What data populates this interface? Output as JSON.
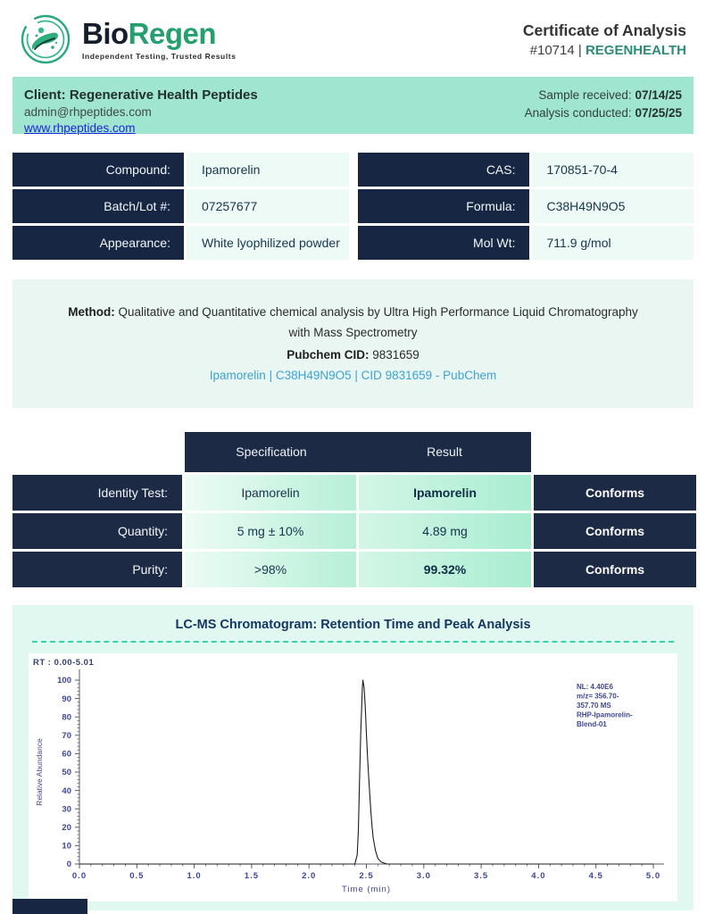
{
  "header": {
    "logo_bio": "Bio",
    "logo_regen": "Regen",
    "tagline": "Independent Testing, Trusted Results",
    "title": "Certificate of Analysis",
    "cert_number": "#10714",
    "separator": " | ",
    "brand": "REGENHEALTH"
  },
  "client_bar": {
    "client_line": "Client: Regenerative Health Peptides",
    "email": "admin@rhpeptides.com",
    "website": "www.rhpeptides.com",
    "sample_received_label": "Sample received: ",
    "sample_received_date": "07/14/25",
    "analysis_conducted_label": "Analysis conducted: ",
    "analysis_conducted_date": "07/25/25"
  },
  "compound_table": {
    "left_rows": [
      {
        "label": "Compound:",
        "value": "Ipamorelin"
      },
      {
        "label": "Batch/Lot #:",
        "value": "07257677"
      },
      {
        "label": "Appearance:",
        "value": "White lyophilized powder"
      }
    ],
    "right_rows": [
      {
        "label": "CAS:",
        "value": "170851-70-4"
      },
      {
        "label": "Formula:",
        "value": "C38H49N9O5"
      },
      {
        "label": "Mol Wt:",
        "value": "711.9 g/mol"
      }
    ]
  },
  "method": {
    "label": "Method: ",
    "text": "Qualitative and Quantitative chemical analysis by Ultra High Performance Liquid Chromatography with Mass Spectrometry",
    "pubchem_label": "Pubchem CID: ",
    "pubchem_cid": "9831659",
    "link": "Ipamorelin | C38H49N9O5 | CID 9831659 - PubChem"
  },
  "spec_table": {
    "header_specification": "Specification",
    "header_result": "Result",
    "rows": [
      {
        "label": "Identity Test:",
        "specification": "Ipamorelin",
        "result": "Ipamorelin",
        "result_bold": true,
        "status": "Conforms"
      },
      {
        "label": "Quantity:",
        "specification": "5 mg ± 10%",
        "result": "4.89 mg",
        "result_bold": false,
        "status": "Conforms"
      },
      {
        "label": "Purity:",
        "specification": ">98%",
        "result": "99.32%",
        "result_bold": true,
        "status": "Conforms"
      }
    ]
  },
  "chromatogram": {
    "section_title": "LC-MS Chromatogram: Retention Time and Peak Analysis",
    "rt_range_label": "RT : 0.00-5.01",
    "annotation_lines": [
      "NL: 4.40E6",
      "m/z= 356.70-",
      "357.70 MS",
      "RHP-Ipamorelin-",
      "Blend-01"
    ]
  },
  "chart_data": {
    "type": "line",
    "title": "LC-MS Chromatogram: Retention Time and Peak Analysis",
    "xlabel": "Time (min)",
    "ylabel": "Relative Abundance",
    "xlim": [
      0,
      5.0
    ],
    "ylim": [
      0,
      100
    ],
    "x_ticks": [
      0.0,
      0.5,
      1.0,
      1.5,
      2.0,
      2.5,
      3.0,
      3.5,
      4.0,
      4.5,
      5.0
    ],
    "y_ticks": [
      0,
      10,
      20,
      30,
      40,
      50,
      60,
      70,
      80,
      90,
      100
    ],
    "x_minor_step": 0.1,
    "y_minor_step": 2,
    "grid": false,
    "peak_retention_time_min": 2.47,
    "peak_relative_abundance": 100,
    "points": [
      [
        0.0,
        0
      ],
      [
        1.0,
        0
      ],
      [
        2.0,
        0
      ],
      [
        2.35,
        0
      ],
      [
        2.4,
        0
      ],
      [
        2.42,
        5
      ],
      [
        2.43,
        18
      ],
      [
        2.44,
        45
      ],
      [
        2.45,
        70
      ],
      [
        2.46,
        88
      ],
      [
        2.465,
        96
      ],
      [
        2.47,
        100
      ],
      [
        2.48,
        96
      ],
      [
        2.49,
        86
      ],
      [
        2.5,
        71
      ],
      [
        2.51,
        58
      ],
      [
        2.52,
        47
      ],
      [
        2.53,
        37
      ],
      [
        2.54,
        28
      ],
      [
        2.55,
        20
      ],
      [
        2.56,
        14
      ],
      [
        2.58,
        7
      ],
      [
        2.6,
        3
      ],
      [
        2.63,
        1
      ],
      [
        2.68,
        0
      ],
      [
        3.0,
        0
      ],
      [
        4.0,
        0
      ],
      [
        5.0,
        0
      ]
    ],
    "line_color": "#1c1c1c",
    "axis_text_color": "#3e4796"
  },
  "colors": {
    "navy": "#172642",
    "mint_bar": "#9fe5cf",
    "pale_cell": "#edfaf5",
    "method_bg": "#e9f6f2",
    "chroma_bg": "#e1f8f0",
    "brand_teal": "#2a8c79",
    "logo_green": "#23a06d",
    "link_blue": "#1d24dd",
    "pubchem_link_blue": "#3ba3d4",
    "dash_green": "#36d3a7"
  }
}
